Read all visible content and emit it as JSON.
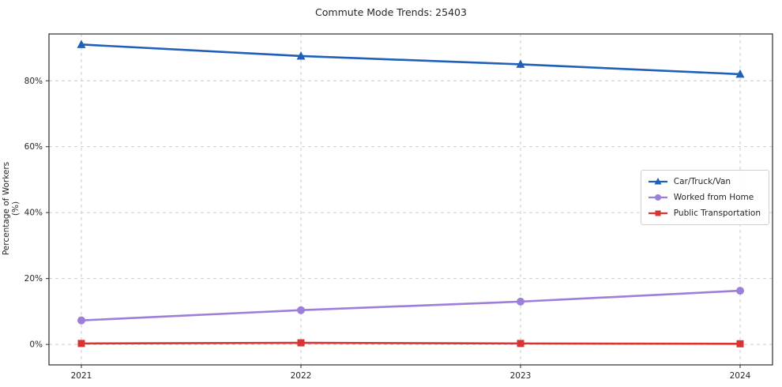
{
  "chart_data": {
    "type": "line",
    "title": "Commute Mode Trends: 25403",
    "xlabel": "",
    "ylabel": "Percentage of Workers (%)",
    "x_tick_labels": [
      "2021",
      "2022",
      "2023",
      "2024"
    ],
    "y_ticks": [
      0,
      20,
      40,
      60,
      80
    ],
    "y_tick_suffix": "%",
    "ylim": [
      -6.2,
      94.2
    ],
    "grid": true,
    "grid_style": "dashed",
    "legend_position": "center-right",
    "colors": {
      "frame": "#2b2b2b",
      "grid": "#c9c9c9",
      "text": "#262626",
      "background": "#ffffff"
    },
    "series": [
      {
        "name": "Car/Truck/Van",
        "marker": "triangle",
        "color": "#2060b8",
        "values": [
          91,
          87.5,
          85,
          82
        ]
      },
      {
        "name": "Worked from Home",
        "marker": "circle",
        "color": "#9b7fd8",
        "values": [
          7.3,
          10.4,
          13,
          16.3
        ]
      },
      {
        "name": "Public Transportation",
        "marker": "square",
        "color": "#d93434",
        "values": [
          0.3,
          0.5,
          0.3,
          0.2
        ]
      }
    ]
  }
}
